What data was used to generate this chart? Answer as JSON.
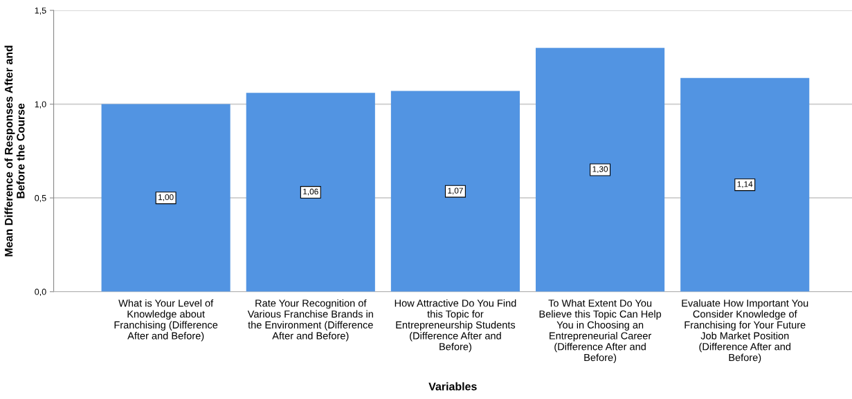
{
  "chart_data": {
    "type": "bar",
    "xlabel": "Variables",
    "ylabel": "Mean Difference of Responses After and\nBefore the Course",
    "categories": [
      "What is Your Level of\nKnowledge about\nFranchising (Difference\nAfter and Before)",
      "Rate Your Recognition of\nVarious Franchise Brands in\nthe Environment (Difference\nAfter and Before)",
      "How Attractive Do You Find\nthis Topic for\nEntrepreneurship Students\n(Difference After and\nBefore)",
      "To What Extent Do You\nBelieve this Topic Can Help\nYou in Choosing an\nEntrepreneurial Career\n(Difference After and\nBefore)",
      "Evaluate How Important You\nConsider Knowledge of\nFranchising for Your Future\nJob Market Position\n(Difference After and\nBefore)"
    ],
    "values": [
      1.0,
      1.06,
      1.07,
      1.3,
      1.14
    ],
    "value_labels": [
      "1,00",
      "1,06",
      "1,07",
      "1,30",
      "1,14"
    ],
    "color": "#5294e2",
    "ylim": [
      0,
      1.5
    ],
    "yticks": [
      {
        "value": 0,
        "label": "0,0"
      },
      {
        "value": 0.5,
        "label": "0,5"
      },
      {
        "value": 1.0,
        "label": "1,0"
      },
      {
        "value": 1.5,
        "label": "1,5"
      }
    ],
    "grid": "y"
  }
}
